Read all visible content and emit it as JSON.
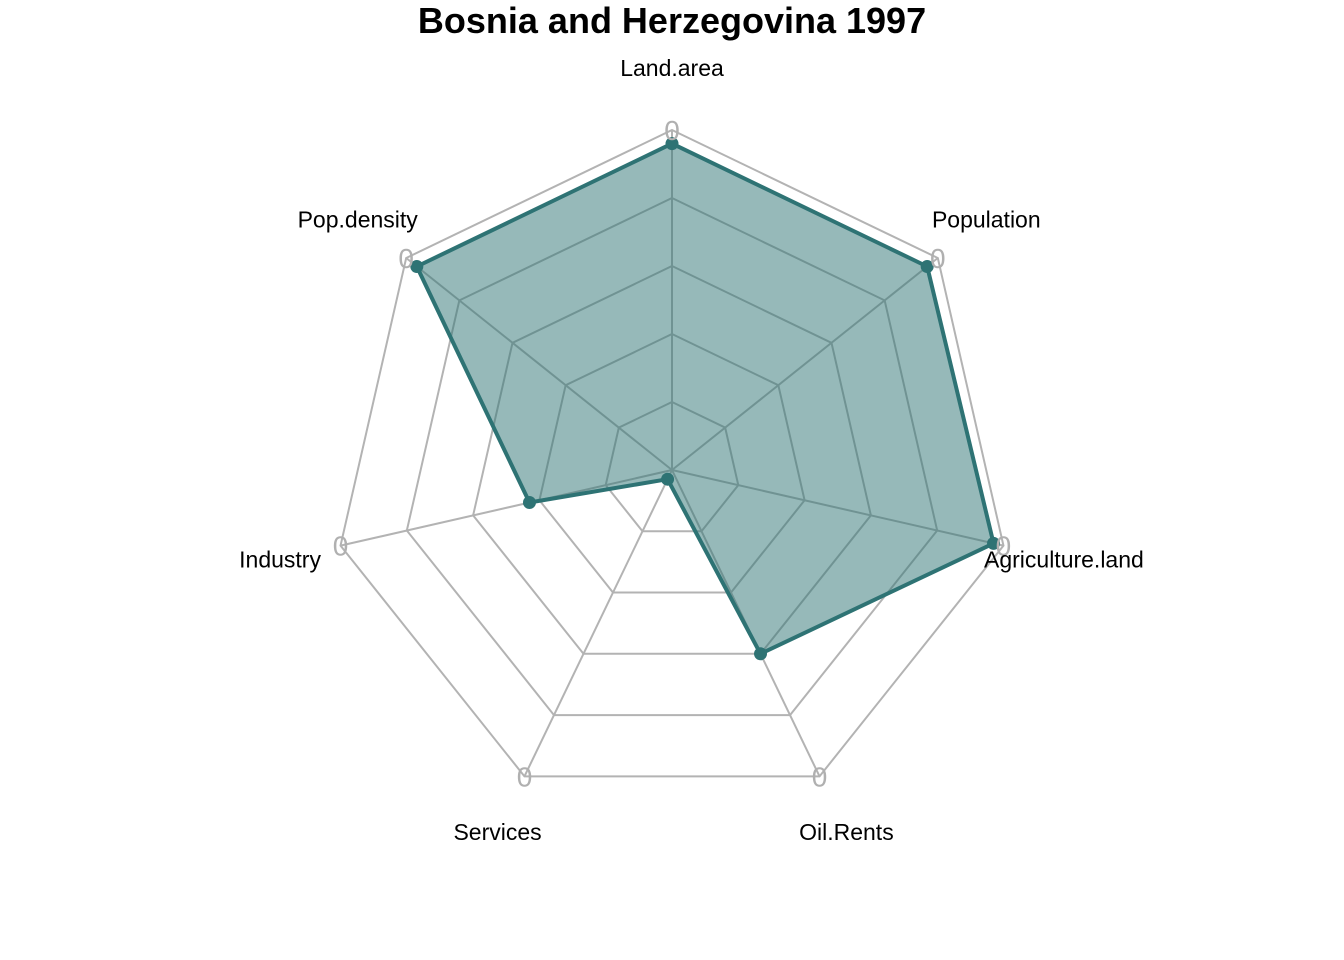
{
  "chart_data": {
    "type": "radar",
    "title": "Bosnia and Herzegovina 1997",
    "axes": [
      "Land.area",
      "Population",
      "Agriculture.land",
      "Oil.Rents",
      "Services",
      "Industry",
      "Pop.density"
    ],
    "series": [
      {
        "values": [
          0.96,
          0.96,
          0.97,
          0.6,
          0.03,
          0.43,
          0.96
        ]
      }
    ],
    "range": [
      0,
      1
    ],
    "grid_levels": 5,
    "axis_tick_label": "0",
    "colors": {
      "series_fill": "#2e7374",
      "series_line": "#2e7374",
      "grid": "#b3b3b3"
    }
  }
}
